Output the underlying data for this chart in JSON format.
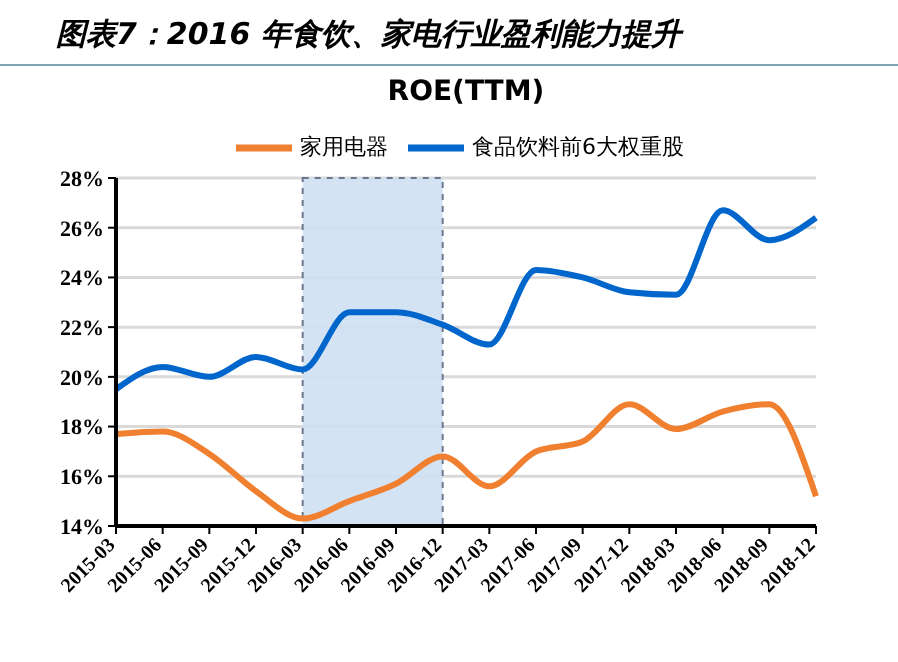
{
  "chart_data": {
    "type": "line",
    "title": "图表7：2016 年食饮、家电行业盈利能力提升",
    "subtitle": "ROE(TTM)",
    "categories": [
      "2015-03",
      "2015-06",
      "2015-09",
      "2015-12",
      "2016-03",
      "2016-06",
      "2016-09",
      "2016-12",
      "2017-03",
      "2017-06",
      "2017-09",
      "2017-12",
      "2018-03",
      "2018-06",
      "2018-09",
      "2018-12"
    ],
    "series": [
      {
        "name": "食品饮料前6大权重股",
        "color": "#0066cc",
        "values": [
          19.5,
          20.4,
          20.0,
          20.8,
          20.3,
          22.6,
          22.6,
          22.1,
          21.3,
          24.3,
          24.0,
          23.4,
          23.3,
          26.7,
          25.5,
          26.4
        ]
      },
      {
        "name": "家用电器",
        "color": "#f08030",
        "values": [
          17.7,
          17.8,
          16.9,
          15.4,
          14.3,
          15.0,
          15.7,
          16.8,
          15.6,
          17.0,
          17.4,
          18.9,
          17.9,
          18.6,
          18.9,
          15.2
        ]
      }
    ],
    "ylim": [
      14,
      28
    ],
    "yticks": [
      {
        "value": 14,
        "label": "14%"
      },
      {
        "value": 16,
        "label": "16%"
      },
      {
        "value": 18,
        "label": "18%"
      },
      {
        "value": 20,
        "label": "20%"
      },
      {
        "value": 22,
        "label": "22%"
      },
      {
        "value": 24,
        "label": "24%"
      },
      {
        "value": 26,
        "label": "26%"
      },
      {
        "value": 28,
        "label": "28%"
      }
    ],
    "bands": [
      {
        "axis": "x",
        "from": "2016-03",
        "to": "2016-12",
        "color": "#cfe0f3"
      }
    ],
    "grid": "y",
    "legend": "top",
    "marker": "none",
    "line_style": "solid"
  }
}
